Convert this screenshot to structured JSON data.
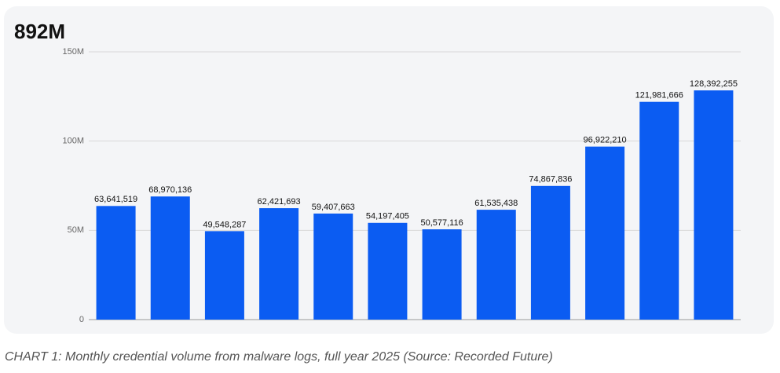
{
  "chart_data": {
    "type": "bar",
    "title": "892M",
    "caption": "CHART 1: Monthly credential volume from malware logs, full year 2025 (Source: Recorded Future)",
    "categories": [
      null,
      null,
      null,
      null,
      null,
      null,
      null,
      null,
      null,
      null,
      null,
      null
    ],
    "values": [
      63641519,
      68970136,
      49548287,
      62421693,
      59407663,
      54197405,
      50577116,
      61535438,
      74867836,
      96922210,
      121981666,
      128392255
    ],
    "value_labels": [
      "63,641,519",
      "68,970,136",
      "49,548,287",
      "62,421,693",
      "59,407,663",
      "54,197,405",
      "50,577,116",
      "61,535,438",
      "74,867,836",
      "96,922,210",
      "121,981,666",
      "128,392,255"
    ],
    "color": "#0b5cf2",
    "ylim": [
      0,
      150000000
    ],
    "yticks": [
      0,
      {
        "value": 50000000,
        "label": "50M"
      },
      {
        "value": 100000000,
        "label": "100M"
      },
      {
        "value": 150000000,
        "label": "150M"
      }
    ],
    "grid": true
  }
}
